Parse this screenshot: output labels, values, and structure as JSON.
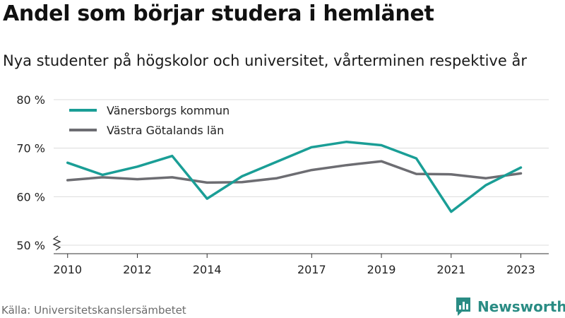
{
  "title": "Andel som börjar studera i hemlänet",
  "subtitle": "Nya studenter på högskolor och universitet, vårterminen respektive år",
  "source": "Källa: Universitetskanslersämbetet",
  "brand": {
    "name": "Newsworthy",
    "icon": "newsworthy-logo-icon",
    "color": "#2a8c84"
  },
  "chart_data": {
    "type": "line",
    "x": [
      2010,
      2011,
      2012,
      2013,
      2014,
      2015,
      2016,
      2017,
      2018,
      2019,
      2020,
      2021,
      2022,
      2023
    ],
    "x_ticks": [
      2010,
      2012,
      2014,
      2017,
      2019,
      2021,
      2023
    ],
    "y_ticks": [
      50,
      60,
      70,
      80
    ],
    "y_tick_labels": [
      "50 %",
      "60 %",
      "70 %",
      "80 %"
    ],
    "ylim": [
      50,
      80
    ],
    "y_axis_break": true,
    "grid": true,
    "legend_position": "top-left",
    "series": [
      {
        "name": "Vänersborgs kommun",
        "color": "#1a9e96",
        "values": [
          67.0,
          64.5,
          66.2,
          68.4,
          59.6,
          64.2,
          67.2,
          70.2,
          71.3,
          70.6,
          67.9,
          56.9,
          62.4,
          66.0
        ]
      },
      {
        "name": "Västra Götalands län",
        "color": "#6d6d72",
        "values": [
          63.4,
          64.0,
          63.6,
          64.0,
          62.9,
          63.0,
          63.8,
          65.5,
          66.5,
          67.3,
          64.7,
          64.6,
          63.8,
          64.8
        ]
      }
    ]
  }
}
